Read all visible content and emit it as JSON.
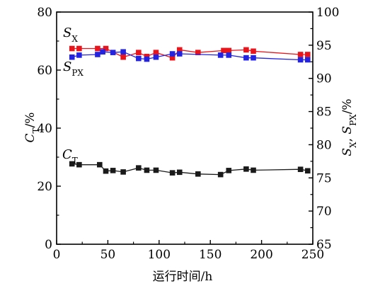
{
  "chart_data": {
    "type": "line",
    "xlabel": "运行时间/h",
    "ylabel_left": "CT/%",
    "ylabel_right": "SX, SPX/%",
    "x_ticks": [
      "0",
      "50",
      "100",
      "150",
      "200",
      "250"
    ],
    "y_left_ticks": [
      "0",
      "20",
      "40",
      "60",
      "80"
    ],
    "y_right_ticks": [
      "65",
      "70",
      "75",
      "80",
      "85",
      "90",
      "95",
      "100"
    ],
    "xlim": [
      0,
      250
    ],
    "ylim_left": [
      0,
      80
    ],
    "ylim_right": [
      65,
      100
    ],
    "grid": false,
    "series": [
      {
        "name": "SX",
        "axis": "right",
        "color": "#e8161c",
        "marker": "square",
        "x": [
          15,
          22,
          40,
          48,
          65,
          80,
          88,
          97,
          113,
          120,
          138,
          163,
          168,
          185,
          192,
          238,
          245
        ],
        "y": [
          94.5,
          94.5,
          94.5,
          94.5,
          93.2,
          93.9,
          93.3,
          93.9,
          93.1,
          94.3,
          93.9,
          94.2,
          94.2,
          94.3,
          94.1,
          93.6,
          93.6
        ]
      },
      {
        "name": "SPX",
        "axis": "right",
        "color": "#2424e0",
        "marker": "square",
        "x": [
          15,
          22,
          40,
          45,
          55,
          65,
          80,
          88,
          97,
          113,
          120,
          160,
          168,
          185,
          192,
          238,
          245
        ],
        "y": [
          93.2,
          93.5,
          93.6,
          94.0,
          93.9,
          94.0,
          93.0,
          92.9,
          93.2,
          93.7,
          93.7,
          93.5,
          93.5,
          93.1,
          93.1,
          92.8,
          92.8
        ]
      },
      {
        "name": "CT",
        "axis": "left",
        "color": "#1a1a1a",
        "marker": "square",
        "x": [
          15,
          22,
          42,
          48,
          55,
          65,
          80,
          88,
          97,
          113,
          120,
          138,
          160,
          168,
          185,
          192,
          238,
          245
        ],
        "y": [
          27.7,
          27.4,
          27.4,
          25.2,
          25.4,
          24.9,
          26.3,
          25.5,
          25.5,
          24.6,
          24.8,
          24.2,
          24.0,
          25.4,
          25.9,
          25.5,
          25.8,
          25.3
        ]
      }
    ]
  }
}
